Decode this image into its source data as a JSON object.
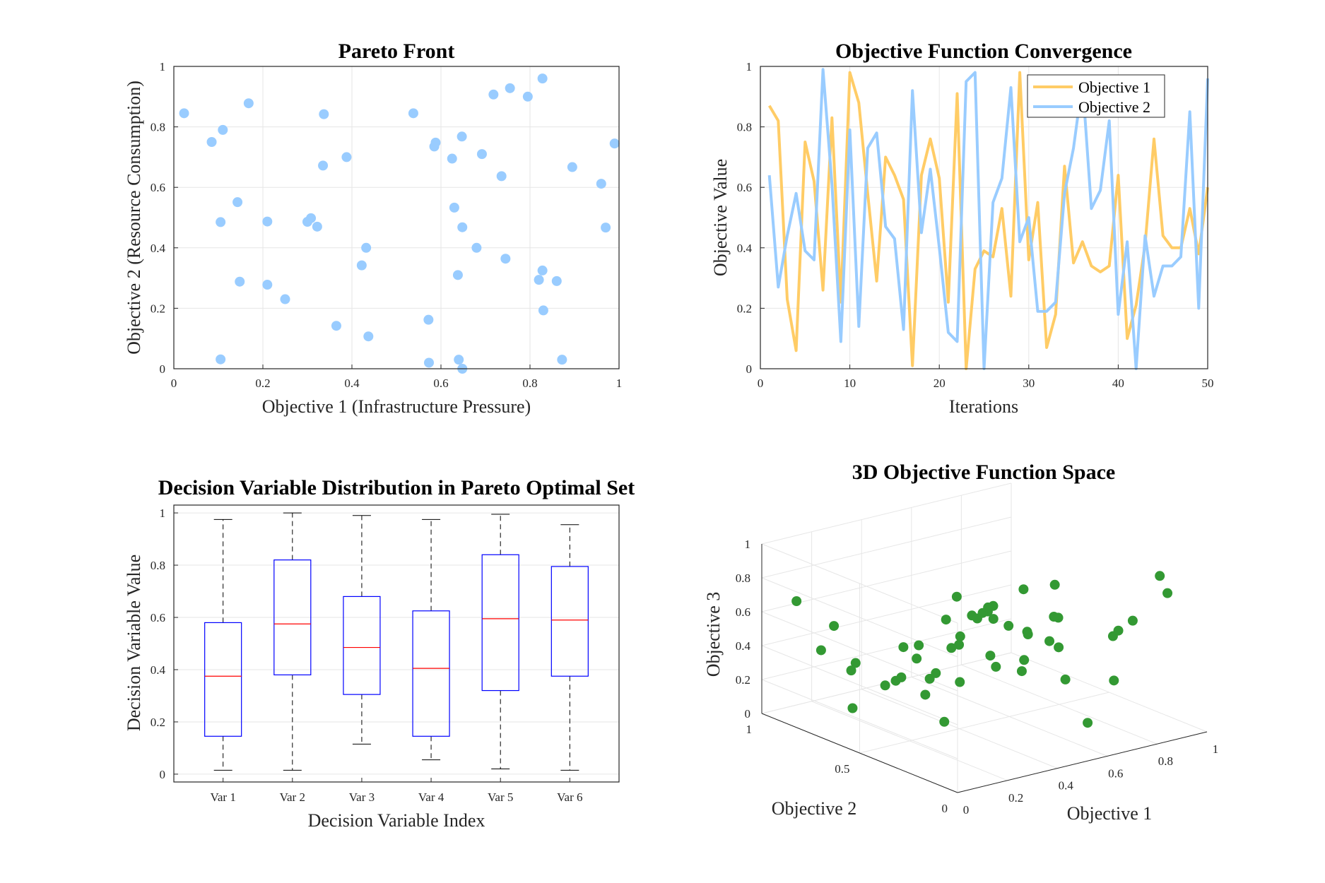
{
  "chart_data": [
    {
      "type": "scatter",
      "title": "Pareto Front",
      "xlabel": "Objective 1 (Infrastructure Pressure)",
      "ylabel": "Objective 2 (Resource Consumption)",
      "xlim": [
        0,
        1
      ],
      "ylim": [
        0,
        1
      ],
      "xticks": [
        "0",
        "0.2",
        "0.4",
        "0.6",
        "0.8",
        "1"
      ],
      "yticks": [
        "0",
        "0.2",
        "0.4",
        "0.6",
        "0.8",
        "1"
      ],
      "grid": true,
      "color": "#99CCFF",
      "points": [
        [
          0.023,
          0.845
        ],
        [
          0.085,
          0.75
        ],
        [
          0.11,
          0.79
        ],
        [
          0.168,
          0.878
        ],
        [
          0.105,
          0.485
        ],
        [
          0.143,
          0.551
        ],
        [
          0.148,
          0.288
        ],
        [
          0.105,
          0.031
        ],
        [
          0.21,
          0.487
        ],
        [
          0.21,
          0.278
        ],
        [
          0.25,
          0.23
        ],
        [
          0.3,
          0.486
        ],
        [
          0.308,
          0.498
        ],
        [
          0.322,
          0.47
        ],
        [
          0.335,
          0.672
        ],
        [
          0.337,
          0.842
        ],
        [
          0.388,
          0.7
        ],
        [
          0.365,
          0.142
        ],
        [
          0.422,
          0.342
        ],
        [
          0.432,
          0.4
        ],
        [
          0.437,
          0.107
        ],
        [
          0.538,
          0.845
        ],
        [
          0.585,
          0.735
        ],
        [
          0.588,
          0.748
        ],
        [
          0.572,
          0.162
        ],
        [
          0.573,
          0.02
        ],
        [
          0.625,
          0.695
        ],
        [
          0.63,
          0.533
        ],
        [
          0.647,
          0.768
        ],
        [
          0.648,
          0.468
        ],
        [
          0.638,
          0.31
        ],
        [
          0.68,
          0.4
        ],
        [
          0.64,
          0.03
        ],
        [
          0.648,
          0.0
        ],
        [
          0.692,
          0.71
        ],
        [
          0.718,
          0.907
        ],
        [
          0.736,
          0.637
        ],
        [
          0.755,
          0.928
        ],
        [
          0.745,
          0.364
        ],
        [
          0.795,
          0.9
        ],
        [
          0.828,
          0.96
        ],
        [
          0.82,
          0.294
        ],
        [
          0.828,
          0.325
        ],
        [
          0.83,
          0.193
        ],
        [
          0.86,
          0.29
        ],
        [
          0.872,
          0.03
        ],
        [
          0.895,
          0.667
        ],
        [
          0.96,
          0.612
        ],
        [
          0.97,
          0.467
        ],
        [
          0.99,
          0.745
        ]
      ]
    },
    {
      "type": "line",
      "title": "Objective Function Convergence",
      "xlabel": "Iterations",
      "ylabel": "Objective Value",
      "xlim": [
        0,
        50
      ],
      "ylim": [
        0,
        1
      ],
      "xticks": [
        "0",
        "10",
        "20",
        "30",
        "40",
        "50"
      ],
      "yticks": [
        "0",
        "0.2",
        "0.4",
        "0.6",
        "0.8",
        "1"
      ],
      "grid": true,
      "legend": "top-right",
      "x": [
        1,
        2,
        3,
        4,
        5,
        6,
        7,
        8,
        9,
        10,
        11,
        12,
        13,
        14,
        15,
        16,
        17,
        18,
        19,
        20,
        21,
        22,
        23,
        24,
        25,
        26,
        27,
        28,
        29,
        30,
        31,
        32,
        33,
        34,
        35,
        36,
        37,
        38,
        39,
        40,
        41,
        42,
        43,
        44,
        45,
        46,
        47,
        48,
        49,
        50
      ],
      "series": [
        {
          "name": "Objective 1",
          "color": "#FFCC66",
          "values": [
            0.87,
            0.82,
            0.23,
            0.06,
            0.75,
            0.62,
            0.26,
            0.83,
            0.22,
            0.98,
            0.88,
            0.58,
            0.29,
            0.7,
            0.64,
            0.56,
            0.01,
            0.64,
            0.76,
            0.63,
            0.22,
            0.91,
            0.0,
            0.33,
            0.39,
            0.37,
            0.53,
            0.24,
            0.98,
            0.36,
            0.55,
            0.07,
            0.18,
            0.67,
            0.35,
            0.42,
            0.34,
            0.32,
            0.34,
            0.64,
            0.1,
            0.21,
            0.41,
            0.76,
            0.44,
            0.4,
            0.4,
            0.53,
            0.38,
            0.6
          ]
        },
        {
          "name": "Objective 2",
          "color": "#99CCFF",
          "values": [
            0.64,
            0.27,
            0.44,
            0.58,
            0.39,
            0.36,
            0.99,
            0.61,
            0.09,
            0.79,
            0.14,
            0.73,
            0.78,
            0.47,
            0.43,
            0.13,
            0.92,
            0.45,
            0.66,
            0.4,
            0.12,
            0.09,
            0.95,
            0.98,
            0.0,
            0.55,
            0.63,
            0.93,
            0.42,
            0.5,
            0.19,
            0.19,
            0.22,
            0.58,
            0.73,
            0.95,
            0.53,
            0.59,
            0.82,
            0.18,
            0.42,
            0.0,
            0.44,
            0.24,
            0.34,
            0.34,
            0.37,
            0.85,
            0.2,
            0.96
          ]
        }
      ]
    },
    {
      "type": "box",
      "title": "Decision Variable Distribution in Pareto Optimal Set",
      "xlabel": "Decision Variable Index",
      "ylabel": "Decision Variable Value",
      "ylim": [
        0,
        1
      ],
      "yticks": [
        "0",
        "0.2",
        "0.4",
        "0.6",
        "0.8",
        "1"
      ],
      "grid": true,
      "categories": [
        "Var 1",
        "Var 2",
        "Var 3",
        "Var 4",
        "Var 5",
        "Var 6"
      ],
      "box_color": "#0000FF",
      "median_color": "#FF0000",
      "boxes": [
        {
          "min": 0.015,
          "q1": 0.145,
          "median": 0.375,
          "q3": 0.58,
          "max": 0.975
        },
        {
          "min": 0.015,
          "q1": 0.38,
          "median": 0.575,
          "q3": 0.82,
          "max": 1.0
        },
        {
          "min": 0.115,
          "q1": 0.305,
          "median": 0.485,
          "q3": 0.68,
          "max": 0.99
        },
        {
          "min": 0.055,
          "q1": 0.145,
          "median": 0.405,
          "q3": 0.625,
          "max": 0.975
        },
        {
          "min": 0.02,
          "q1": 0.32,
          "median": 0.595,
          "q3": 0.84,
          "max": 0.995
        },
        {
          "min": 0.015,
          "q1": 0.375,
          "median": 0.59,
          "q3": 0.795,
          "max": 0.955
        }
      ]
    },
    {
      "type": "scatter3d",
      "title": "3D Objective Function Space",
      "xlabel": "Objective 1",
      "ylabel": "Objective 2",
      "zlabel": "Objective 3",
      "xticks": [
        "0",
        "0.2",
        "0.4",
        "0.6",
        "0.8",
        "1"
      ],
      "yticks": [
        "0",
        "0.5",
        "1"
      ],
      "zticks": [
        "0",
        "0.2",
        "0.4",
        "0.6",
        "0.8",
        "1"
      ],
      "grid": true,
      "color": "#339933",
      "points": [
        [
          0.05,
          0.05,
          0.88
        ],
        [
          0.1,
          0.12,
          0.78
        ],
        [
          0.15,
          0.25,
          0.85
        ],
        [
          0.2,
          0.1,
          0.95
        ],
        [
          0.08,
          0.3,
          0.7
        ],
        [
          0.25,
          0.35,
          0.6
        ],
        [
          0.3,
          0.2,
          0.9
        ],
        [
          0.35,
          0.45,
          0.82
        ],
        [
          0.4,
          0.15,
          0.72
        ],
        [
          0.45,
          0.5,
          0.65
        ],
        [
          0.5,
          0.3,
          0.88
        ],
        [
          0.55,
          0.6,
          0.55
        ],
        [
          0.6,
          0.25,
          0.7
        ],
        [
          0.65,
          0.7,
          0.5
        ],
        [
          0.7,
          0.4,
          0.6
        ],
        [
          0.75,
          0.8,
          0.45
        ],
        [
          0.8,
          0.55,
          0.35
        ],
        [
          0.85,
          0.9,
          0.3
        ],
        [
          0.9,
          0.65,
          0.6
        ],
        [
          0.95,
          0.95,
          0.2
        ],
        [
          0.12,
          0.85,
          0.4
        ],
        [
          0.18,
          0.75,
          0.35
        ],
        [
          0.22,
          0.65,
          0.25
        ],
        [
          0.28,
          0.9,
          0.2
        ],
        [
          0.32,
          0.55,
          0.3
        ],
        [
          0.38,
          0.8,
          0.15
        ],
        [
          0.42,
          0.7,
          0.1
        ],
        [
          0.48,
          0.6,
          0.2
        ],
        [
          0.52,
          0.95,
          0.05
        ],
        [
          0.58,
          0.85,
          0.1
        ],
        [
          0.62,
          0.45,
          0.35
        ],
        [
          0.68,
          0.35,
          0.45
        ],
        [
          0.72,
          0.75,
          0.2
        ],
        [
          0.78,
          0.2,
          0.55
        ],
        [
          0.82,
          0.15,
          0.65
        ],
        [
          0.88,
          0.3,
          0.5
        ],
        [
          0.92,
          0.1,
          0.8
        ],
        [
          0.15,
          0.4,
          0.55
        ],
        [
          0.35,
          0.25,
          0.5
        ],
        [
          0.55,
          0.15,
          0.4
        ],
        [
          0.65,
          0.5,
          0.25
        ],
        [
          0.45,
          0.85,
          0.3
        ],
        [
          0.25,
          0.95,
          0.45
        ],
        [
          0.75,
          0.6,
          0.4
        ],
        [
          0.05,
          0.6,
          0.2
        ],
        [
          0.98,
          0.45,
          0.1
        ],
        [
          0.3,
          0.45,
          0.1
        ],
        [
          0.6,
          0.1,
          0.15
        ],
        [
          0.85,
          0.05,
          0.95
        ],
        [
          0.1,
          0.95,
          0.65
        ]
      ]
    }
  ]
}
